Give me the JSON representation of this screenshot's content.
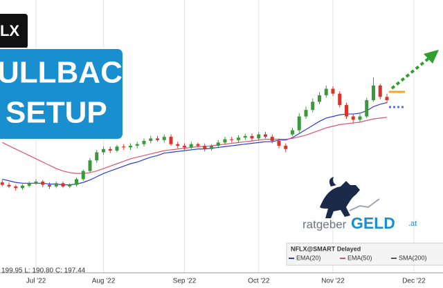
{
  "chart_data": {
    "type": "candlestick",
    "categories": [
      null,
      null,
      null,
      null,
      null,
      "Jul '22",
      null,
      null,
      null,
      null,
      null,
      null,
      null,
      null,
      null,
      "Aug '22",
      null,
      null,
      null,
      null,
      null,
      null,
      null,
      null,
      null,
      null,
      null,
      "Sep '22",
      null,
      null,
      null,
      null,
      null,
      null,
      null,
      null,
      null,
      null,
      "Oct '22",
      null,
      null,
      null,
      null,
      null,
      null,
      null,
      null,
      null,
      null,
      "Nov '22",
      null,
      null,
      null,
      null,
      null,
      null,
      null,
      null,
      null,
      null,
      null,
      "Dec '22"
    ],
    "open": [
      181,
      178,
      176,
      174,
      177,
      180,
      182,
      178,
      176,
      180,
      176,
      178,
      185,
      195,
      208,
      218,
      222,
      220,
      225,
      224,
      226,
      228,
      232,
      235,
      233,
      237,
      228,
      226,
      224,
      228,
      226,
      222,
      226,
      230,
      234,
      233,
      236,
      238,
      235,
      240,
      237,
      232,
      226,
      240,
      245,
      262,
      270,
      280,
      288,
      296,
      290,
      276,
      262,
      258,
      262,
      282,
      300,
      286,
      null,
      null,
      null,
      null
    ],
    "high": [
      184,
      181,
      178,
      179,
      182,
      185,
      184,
      181,
      182,
      182,
      180,
      187,
      197,
      211,
      221,
      225,
      225,
      227,
      228,
      229,
      231,
      235,
      238,
      238,
      240,
      240,
      231,
      229,
      231,
      230,
      229,
      228,
      233,
      237,
      237,
      239,
      241,
      241,
      243,
      243,
      240,
      235,
      229,
      248,
      266,
      274,
      284,
      292,
      300,
      299,
      293,
      279,
      265,
      265,
      285,
      310,
      302,
      290,
      null,
      null,
      null,
      null
    ],
    "low": [
      176,
      174,
      171,
      172,
      175,
      178,
      175,
      173,
      174,
      174,
      174,
      176,
      183,
      193,
      205,
      215,
      217,
      218,
      221,
      221,
      223,
      225,
      229,
      231,
      230,
      226,
      223,
      221,
      221,
      224,
      219,
      220,
      223,
      227,
      230,
      230,
      233,
      232,
      232,
      235,
      229,
      223,
      218,
      238,
      242,
      259,
      267,
      277,
      285,
      287,
      273,
      259,
      254,
      255,
      260,
      280,
      283,
      278,
      null,
      null,
      null,
      null
    ],
    "close": [
      178,
      176,
      174,
      177,
      180,
      182,
      178,
      176,
      180,
      176,
      178,
      185,
      195,
      208,
      218,
      222,
      220,
      225,
      224,
      226,
      228,
      232,
      235,
      233,
      237,
      228,
      226,
      224,
      228,
      226,
      222,
      226,
      230,
      234,
      233,
      236,
      238,
      235,
      240,
      237,
      232,
      226,
      222,
      245,
      262,
      270,
      280,
      288,
      296,
      290,
      276,
      262,
      258,
      262,
      282,
      300,
      286,
      282,
      null,
      null,
      null,
      null
    ],
    "up_color": "#3a9a3a",
    "down_color": "#d9342b",
    "series": [
      {
        "name": "EMA(20)",
        "color": "#2b3bd6",
        "values": [
          185,
          183,
          181,
          180,
          180,
          180,
          180,
          179,
          179,
          178,
          178,
          179,
          181,
          184,
          188,
          192,
          195,
          198,
          201,
          204,
          206,
          209,
          212,
          214,
          217,
          218,
          219,
          220,
          221,
          222,
          222,
          223,
          224,
          225,
          226,
          227,
          228,
          229,
          230,
          231,
          231,
          233,
          233,
          236,
          241,
          246,
          251,
          256,
          260,
          262,
          264,
          265,
          265,
          266,
          269,
          274,
          277,
          279,
          null,
          null,
          null,
          null
        ]
      },
      {
        "name": "EMA(50)",
        "color": "#e05070",
        "values": [
          230,
          226,
          222,
          218,
          214,
          210,
          206,
          202,
          198,
          195,
          193,
          192,
          192,
          193,
          195,
          198,
          201,
          204,
          207,
          210,
          212,
          214,
          216,
          218,
          220,
          221,
          222,
          223,
          224,
          225,
          225,
          226,
          227,
          228,
          229,
          230,
          231,
          232,
          233,
          234,
          234,
          234,
          234,
          235,
          237,
          239,
          242,
          245,
          248,
          250,
          252,
          253,
          254,
          255,
          257,
          259,
          260,
          261,
          null,
          null,
          null,
          null
        ]
      },
      {
        "name": "SMA(200)",
        "color": "#555555",
        "values": [
          null,
          null,
          null,
          null,
          null,
          null,
          null,
          null,
          null,
          null,
          null,
          null,
          null,
          null,
          null,
          null,
          null,
          null,
          null,
          null,
          null,
          null,
          null,
          null,
          null,
          null,
          null,
          null,
          null,
          null,
          null,
          null,
          null,
          null,
          null,
          null,
          null,
          null,
          null,
          null,
          null,
          null,
          null,
          null,
          null,
          null,
          null,
          null,
          null,
          null,
          null,
          null,
          null,
          null,
          null,
          null,
          null,
          null,
          null,
          null,
          null,
          null
        ]
      }
    ],
    "ylim": [
      70,
      405
    ],
    "grid": true,
    "legend_title": "NFLX@SMART Delayed",
    "readout": "199.95 L: 190.80 C: 197.44"
  },
  "overlay": {
    "ticker": "LX",
    "headline": [
      "ULLBACK",
      "SETUP"
    ],
    "logo": {
      "prefix": "ratgeber",
      "brand": "GELD",
      "suffix": ".at"
    }
  }
}
